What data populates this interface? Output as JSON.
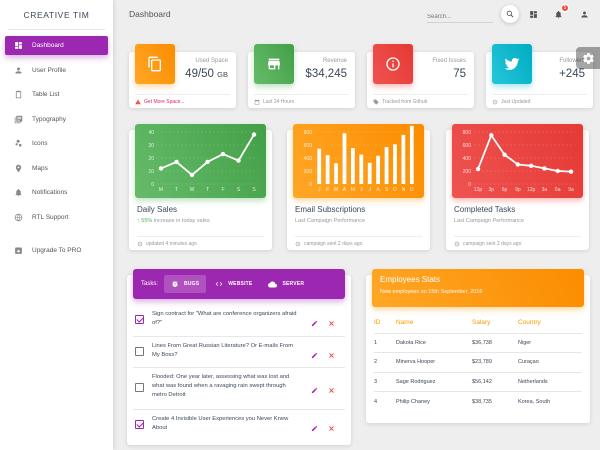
{
  "brand": "CREATIVE TIM",
  "page_title": "Dashboard",
  "search": {
    "placeholder": "Search..."
  },
  "notifications_count": "5",
  "sidebar": {
    "items": [
      {
        "label": "Dashboard",
        "icon": "dashboard-icon"
      },
      {
        "label": "User Profile",
        "icon": "person-icon"
      },
      {
        "label": "Table List",
        "icon": "clipboard-icon"
      },
      {
        "label": "Typography",
        "icon": "library-books-icon"
      },
      {
        "label": "Icons",
        "icon": "bubble-chart-icon"
      },
      {
        "label": "Maps",
        "icon": "location-icon"
      },
      {
        "label": "Notifications",
        "icon": "bell-icon"
      },
      {
        "label": "RTL Support",
        "icon": "language-icon"
      },
      {
        "label": "Upgrade To PRO",
        "icon": "unarchive-icon"
      }
    ]
  },
  "stats": [
    {
      "category": "Used Space",
      "value": "49/50",
      "unit": "GB",
      "footer": "Get More Space...",
      "color": "#ff9800"
    },
    {
      "category": "Revenue",
      "value": "$34,245",
      "footer": "Last 24 Hours",
      "color": "#4caf50"
    },
    {
      "category": "Fixed Issues",
      "value": "75",
      "footer": "Tracked from Github",
      "color": "#f44336"
    },
    {
      "category": "Followers",
      "value": "+245",
      "footer": "Just Updated",
      "color": "#00acc1"
    }
  ],
  "charts": [
    {
      "title": "Daily Sales",
      "subtitle_highlight": "55%",
      "subtitle_rest": " increase in today sales",
      "footer": "updated 4 minutes ago",
      "color": "#4caf50"
    },
    {
      "title": "Email Subscriptions",
      "subtitle": "Last Campaign Performance",
      "footer": "campaign sent 2 days ago",
      "color": "#ff9800"
    },
    {
      "title": "Completed Tasks",
      "subtitle": "Last Campaign Performance",
      "footer": "campaign sent 2 days ago",
      "color": "#f44336"
    }
  ],
  "chart_data": [
    {
      "type": "line",
      "categories": [
        "M",
        "T",
        "W",
        "T",
        "F",
        "S",
        "S"
      ],
      "values": [
        12,
        17,
        7,
        17,
        23,
        18,
        38
      ],
      "ylim": [
        0,
        40
      ],
      "yticks": [
        0,
        10,
        20,
        30,
        40
      ]
    },
    {
      "type": "bar",
      "categories": [
        "J",
        "F",
        "M",
        "A",
        "M",
        "J",
        "J",
        "A",
        "S",
        "O",
        "N",
        "D"
      ],
      "values": [
        542,
        443,
        320,
        780,
        553,
        453,
        326,
        434,
        568,
        610,
        756,
        895
      ],
      "ylim": [
        0,
        800
      ],
      "yticks": [
        0,
        200,
        400,
        600,
        800
      ]
    },
    {
      "type": "line",
      "categories": [
        "12p",
        "3p",
        "6p",
        "9p",
        "12p",
        "3a",
        "6a",
        "9a"
      ],
      "values": [
        230,
        750,
        450,
        300,
        280,
        240,
        200,
        190
      ],
      "ylim": [
        0,
        800
      ],
      "yticks": [
        0,
        200,
        400,
        600,
        800
      ]
    }
  ],
  "tasks": {
    "label": "Tasks:",
    "tabs": [
      {
        "label": "BUGS",
        "icon": "bug-icon"
      },
      {
        "label": "WEBSITE",
        "icon": "code-icon"
      },
      {
        "label": "SERVER",
        "icon": "cloud-icon"
      }
    ],
    "items": [
      {
        "text": "Sign contract for \"What are conference organizers afraid of?\"",
        "checked": true
      },
      {
        "text": "Lines From Great Russian Literature? Or E-mails From My Boss?",
        "checked": false
      },
      {
        "text": "Flooded: One year later, assessing what was lost and what was found when a ravaging rain swept through metro Detroit",
        "checked": false
      },
      {
        "text": "Create 4 Invisible User Experiences you Never Knew About",
        "checked": true
      }
    ]
  },
  "employees": {
    "title": "Employees Stats",
    "subtitle": "New employees on 15th September, 2016",
    "headers": [
      "ID",
      "Name",
      "Salary",
      "Country"
    ],
    "rows": [
      [
        "1",
        "Dakota Rice",
        "$36,738",
        "Niger"
      ],
      [
        "2",
        "Minerva Hooper",
        "$23,789",
        "Curaçao"
      ],
      [
        "3",
        "Sage Rodriguez",
        "$56,142",
        "Netherlands"
      ],
      [
        "4",
        "Philip Chaney",
        "$38,735",
        "Korea, South"
      ]
    ]
  }
}
